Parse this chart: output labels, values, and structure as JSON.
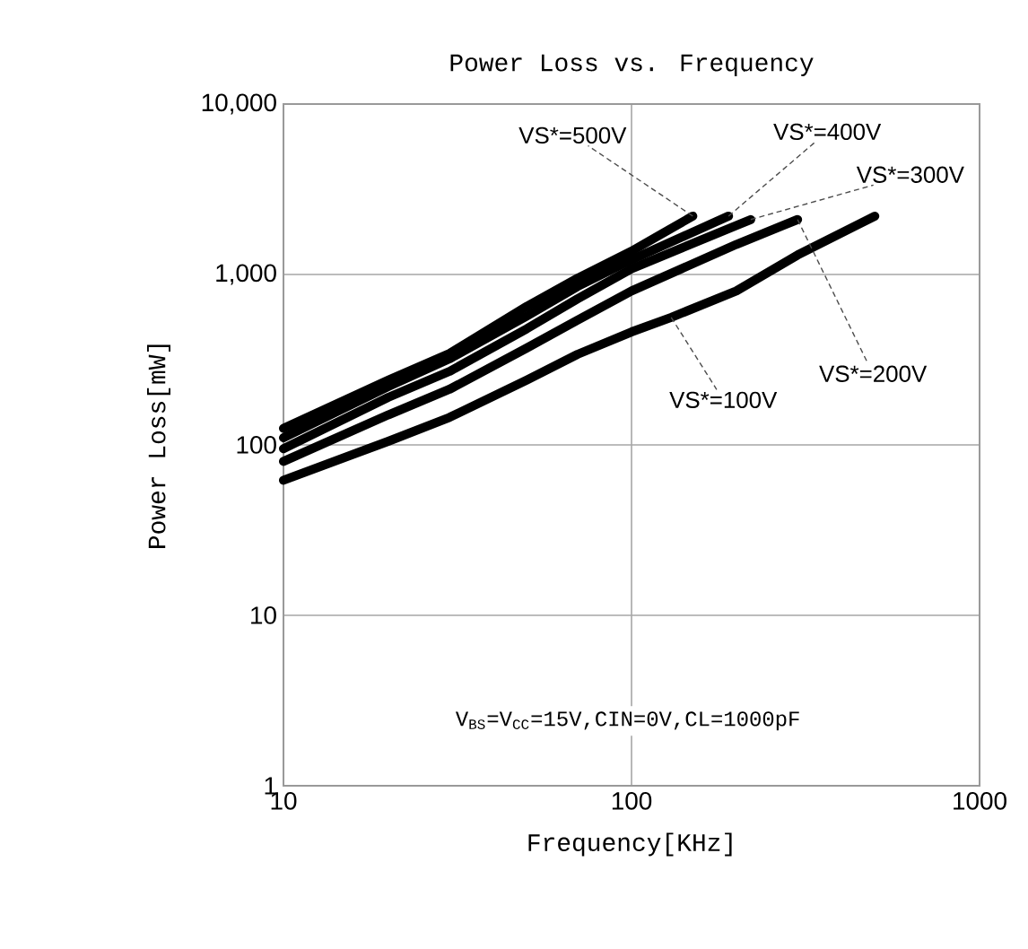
{
  "chart_data": {
    "type": "line",
    "title": "Power Loss vs. Frequency",
    "xlabel": "Frequency[KHz]",
    "ylabel": "Power Loss[mW]",
    "log": "xy",
    "grid": true,
    "line_style": "solid",
    "xlim": [
      10,
      1000
    ],
    "ylim": [
      1,
      10000
    ],
    "xticks": [
      10,
      100,
      1000
    ],
    "yticks": [
      1,
      10,
      100,
      {
        "value": 1000,
        "label": "1,000"
      },
      {
        "value": 10000,
        "label": "10,000"
      }
    ],
    "series": [
      {
        "name": "VS*=500V",
        "color": "#000000",
        "x": [
          10,
          20,
          30,
          50,
          70,
          100,
          150
        ],
        "values": [
          125,
          240,
          344,
          650,
          950,
          1370,
          2200
        ]
      },
      {
        "name": "VS*=400V",
        "color": "#000000",
        "x": [
          10,
          20,
          30,
          50,
          70,
          100,
          190
        ],
        "values": [
          110,
          220,
          320,
          570,
          850,
          1220,
          2200
        ]
      },
      {
        "name": "VS*=300V",
        "color": "#000000",
        "x": [
          10,
          20,
          30,
          50,
          70,
          100,
          220
        ],
        "values": [
          95,
          190,
          270,
          480,
          720,
          1080,
          2100
        ]
      },
      {
        "name": "VS*=200V",
        "color": "#000000",
        "x": [
          10,
          20,
          30,
          50,
          70,
          100,
          200,
          300
        ],
        "values": [
          80,
          150,
          212,
          370,
          540,
          800,
          1500,
          2100
        ]
      },
      {
        "name": "VS*=100V",
        "color": "#000000",
        "x": [
          10,
          20,
          30,
          50,
          70,
          100,
          130,
          200,
          300,
          500
        ],
        "values": [
          62,
          105,
          145,
          240,
          340,
          460,
          560,
          800,
          1300,
          2200
        ]
      }
    ],
    "annotations": [
      "V$_{BS}$=V$_{CC}$=15V,CIN=0V,CL=1000pF"
    ]
  }
}
